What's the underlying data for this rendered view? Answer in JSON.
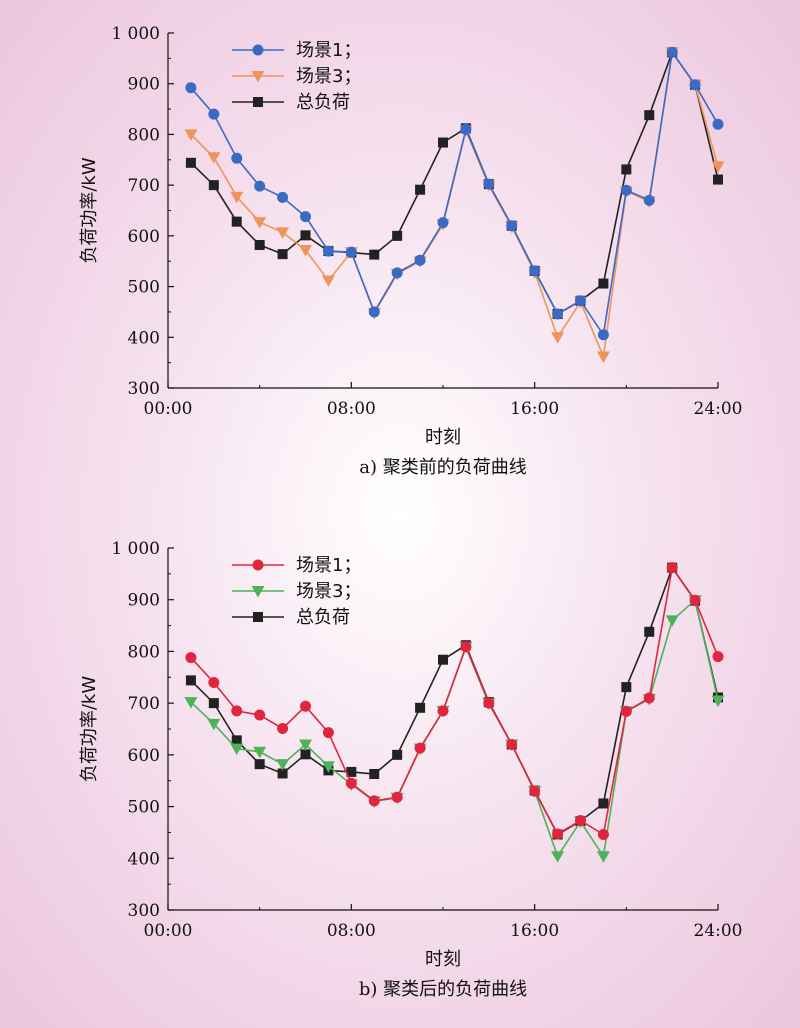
{
  "chart_data": [
    {
      "type": "line",
      "caption": "a) 聚类前的负荷曲线",
      "xlabel": "时刻",
      "ylabel": "负荷功率/kW",
      "x_ticks": [
        "00:00",
        "08:00",
        "16:00",
        "24:00"
      ],
      "y_ticks": [
        "300",
        "400",
        "500",
        "600",
        "700",
        "800",
        "900",
        "1 000"
      ],
      "xlim": [
        0,
        24
      ],
      "ylim": [
        300,
        1000
      ],
      "legend_position": "top-left",
      "x": [
        1,
        2,
        3,
        4,
        5,
        6,
        7,
        8,
        9,
        10,
        11,
        12,
        13,
        14,
        15,
        16,
        17,
        18,
        19,
        20,
        21,
        22,
        23,
        24
      ],
      "series": [
        {
          "name": "场景1；",
          "color": "#3a6bc4",
          "marker": "circle",
          "values": [
            892,
            840,
            753,
            698,
            676,
            638,
            570,
            568,
            450,
            527,
            552,
            626,
            810,
            702,
            620,
            531,
            446,
            472,
            405,
            690,
            670,
            962,
            898,
            820
          ]
        },
        {
          "name": "场景3；",
          "color": "#ef945a",
          "marker": "triangle-down",
          "values": [
            800,
            755,
            677,
            627,
            607,
            572,
            512,
            568,
            448,
            525,
            550,
            623,
            808,
            700,
            618,
            528,
            400,
            470,
            362,
            688,
            668,
            962,
            898,
            737
          ]
        },
        {
          "name": "总负荷",
          "color": "#222222",
          "marker": "square",
          "values": [
            744,
            700,
            628,
            582,
            564,
            601,
            570,
            567,
            563,
            600,
            691,
            784,
            812,
            702,
            620,
            531,
            446,
            472,
            506,
            731,
            838,
            962,
            898,
            711
          ]
        }
      ]
    },
    {
      "type": "line",
      "caption": "b) 聚类后的负荷曲线",
      "xlabel": "时刻",
      "ylabel": "负荷功率/kW",
      "x_ticks": [
        "00:00",
        "08:00",
        "16:00",
        "24:00"
      ],
      "y_ticks": [
        "300",
        "400",
        "500",
        "600",
        "700",
        "800",
        "900",
        "1 000"
      ],
      "xlim": [
        0,
        24
      ],
      "ylim": [
        300,
        1000
      ],
      "legend_position": "top-left",
      "x": [
        1,
        2,
        3,
        4,
        5,
        6,
        7,
        8,
        9,
        10,
        11,
        12,
        13,
        14,
        15,
        16,
        17,
        18,
        19,
        20,
        21,
        22,
        23,
        24
      ],
      "series": [
        {
          "name": "场景1；",
          "color": "#e0263e",
          "marker": "circle",
          "values": [
            788,
            740,
            685,
            677,
            651,
            694,
            643,
            545,
            511,
            518,
            613,
            685,
            809,
            700,
            620,
            530,
            447,
            473,
            446,
            684,
            710,
            962,
            899,
            790
          ]
        },
        {
          "name": "场景3；",
          "color": "#4db25a",
          "marker": "triangle-down",
          "values": [
            702,
            660,
            612,
            606,
            582,
            620,
            578,
            543,
            510,
            517,
            612,
            685,
            809,
            700,
            620,
            530,
            404,
            471,
            404,
            684,
            708,
            860,
            899,
            705
          ]
        },
        {
          "name": "总负荷",
          "color": "#222222",
          "marker": "square",
          "values": [
            744,
            700,
            628,
            582,
            564,
            601,
            570,
            567,
            563,
            600,
            691,
            784,
            812,
            702,
            620,
            531,
            446,
            472,
            506,
            731,
            838,
            962,
            898,
            711
          ]
        }
      ]
    }
  ]
}
